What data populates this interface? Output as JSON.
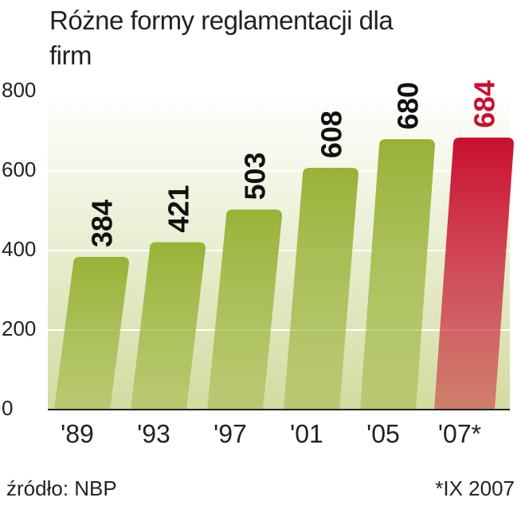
{
  "chart_data": {
    "type": "bar",
    "title": "Różne formy reglamentacji dla firm",
    "categories": [
      "'89",
      "'93",
      "'97",
      "'01",
      "'05",
      "'07*"
    ],
    "values": [
      384,
      421,
      503,
      608,
      680,
      684
    ],
    "colors": [
      "#98b236",
      "#98b236",
      "#98b236",
      "#98b236",
      "#98b236",
      "#c8102e"
    ],
    "label_colors": [
      "#111111",
      "#111111",
      "#111111",
      "#111111",
      "#111111",
      "#c8102e"
    ],
    "ylim": [
      0,
      800
    ],
    "yticks": [
      0,
      200,
      400,
      600,
      800
    ],
    "grid": true,
    "source": "źródło: NBP",
    "note": "*IX 2007"
  }
}
